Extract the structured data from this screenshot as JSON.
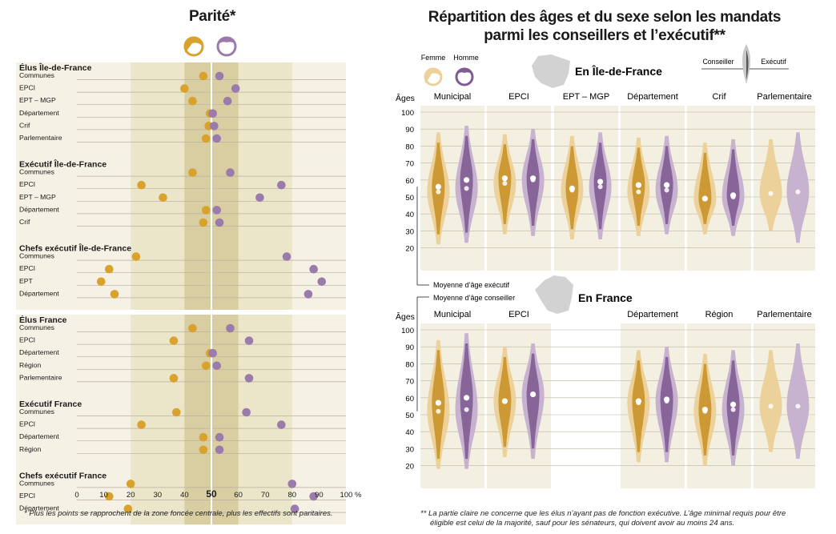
{
  "left": {
    "title": "Parité*",
    "footnote": "* Plus les points se rapprochent de la zone foncée centrale, plus les effectifs sont paritaires.",
    "axis_ticks": [
      "0",
      "10",
      "20",
      "30",
      "40",
      "50",
      "60",
      "70",
      "80",
      "90",
      "100 %"
    ],
    "colors": {
      "femme": "#d9a22c",
      "homme": "#9a7bac",
      "zone_light": "#ebe5c9",
      "zone_dark": "#d8cea2",
      "bg": "#f5f1e4"
    }
  },
  "right": {
    "title_line1": "Répartition des âges et du sexe selon les mandats",
    "title_line2": "parmi les conseillers et l’exécutif**",
    "footnote_line1": "** La partie claire ne concerne que les élus n’ayant pas de fonction exécutive. L’âge minimal requis pour être",
    "footnote_line2": "éligible est celui de la majorité, sauf pour les sénateurs, qui doivent avoir au moins 24 ans.",
    "legend": {
      "femme": "Femme",
      "homme": "Homme",
      "conseiller": "Conseiller",
      "executif": "Exécutif"
    },
    "region_idf": "En Île-de-France",
    "region_fr": "En France",
    "ages_label": "Âges",
    "age_ticks": [
      "100",
      "90",
      "80",
      "70",
      "60",
      "50",
      "40",
      "30",
      "20"
    ],
    "annot_exec": "Moyenne d’âge exécutif",
    "annot_cons": "Moyenne d’âge conseiller",
    "colors": {
      "femme_dark": "#c9922a",
      "femme_light": "#ecd29a",
      "homme_dark": "#7f5c92",
      "homme_light": "#c7b3d0",
      "panel_bg": "#f3efe1"
    }
  },
  "chart_data": [
    {
      "type": "scatter",
      "title": "Parité*",
      "xlim": [
        0,
        100
      ],
      "x_unit": "%",
      "highlight_zones": [
        [
          20,
          80
        ],
        [
          40,
          60
        ]
      ],
      "series_keys": [
        "femme",
        "homme"
      ],
      "groups": [
        {
          "label": "Élus Île-de-France",
          "rows": [
            {
              "label": "Communes",
              "femme": 47,
              "homme": 53
            },
            {
              "label": "EPCI",
              "femme": 40,
              "homme": 59
            },
            {
              "label": "EPT – MGP",
              "femme": 43,
              "homme": 56
            },
            {
              "label": "Département",
              "femme": 49.5,
              "homme": 50.5
            },
            {
              "label": "Crif",
              "femme": 49,
              "homme": 51
            },
            {
              "label": "Parlementaire",
              "femme": 48,
              "homme": 52
            }
          ]
        },
        {
          "label": "Exécutif Île-de-France",
          "rows": [
            {
              "label": "Communes",
              "femme": 43,
              "homme": 57
            },
            {
              "label": "EPCI",
              "femme": 24,
              "homme": 76
            },
            {
              "label": "EPT – MGP",
              "femme": 32,
              "homme": 68
            },
            {
              "label": "Département",
              "femme": 48,
              "homme": 52
            },
            {
              "label": "Crif",
              "femme": 47,
              "homme": 53
            }
          ]
        },
        {
          "label": "Chefs exécutif Île-de-France",
          "rows": [
            {
              "label": "Communes",
              "femme": 22,
              "homme": 78
            },
            {
              "label": "EPCI",
              "femme": 12,
              "homme": 88
            },
            {
              "label": "EPT",
              "femme": 9,
              "homme": 91
            },
            {
              "label": "Département",
              "femme": 14,
              "homme": 86
            }
          ]
        },
        {
          "label": "Élus France",
          "rows": [
            {
              "label": "Communes",
              "femme": 43,
              "homme": 57
            },
            {
              "label": "EPCI",
              "femme": 36,
              "homme": 64
            },
            {
              "label": "Département",
              "femme": 49.5,
              "homme": 50.5
            },
            {
              "label": "Région",
              "femme": 48,
              "homme": 52
            },
            {
              "label": "Parlementaire",
              "femme": 36,
              "homme": 64
            }
          ]
        },
        {
          "label": "Exécutif France",
          "rows": [
            {
              "label": "Communes",
              "femme": 37,
              "homme": 63
            },
            {
              "label": "EPCI",
              "femme": 24,
              "homme": 76
            },
            {
              "label": "Département",
              "femme": 47,
              "homme": 53
            },
            {
              "label": "Région",
              "femme": 47,
              "homme": 53
            }
          ]
        },
        {
          "label": "Chefs exécutif France",
          "rows": [
            {
              "label": "Communes",
              "femme": 20,
              "homme": 80
            },
            {
              "label": "EPCI",
              "femme": 12,
              "homme": 88
            },
            {
              "label": "Département",
              "femme": 19,
              "homme": 81
            }
          ]
        }
      ]
    },
    {
      "type": "violin",
      "title": "Répartition des âges et du sexe selon les mandats parmi les conseillers et l’exécutif**",
      "ylabel": "Âges",
      "ylim": [
        15,
        105
      ],
      "panels": [
        {
          "region": "En Île-de-France",
          "label": "Municipal",
          "femme": {
            "min": 22,
            "max": 88,
            "mean_cons": 53,
            "mean_exec": 56
          },
          "homme": {
            "min": 23,
            "max": 92,
            "mean_cons": 55,
            "mean_exec": 60
          }
        },
        {
          "region": "En Île-de-France",
          "label": "EPCI",
          "femme": {
            "min": 28,
            "max": 87,
            "mean_cons": 58,
            "mean_exec": 61
          },
          "homme": {
            "min": 27,
            "max": 90,
            "mean_cons": 60,
            "mean_exec": 61
          }
        },
        {
          "region": "En Île-de-France",
          "label": "EPT – MGP",
          "femme": {
            "min": 25,
            "max": 86,
            "mean_cons": 54,
            "mean_exec": 55
          },
          "homme": {
            "min": 25,
            "max": 88,
            "mean_cons": 56,
            "mean_exec": 59
          }
        },
        {
          "region": "En Île-de-France",
          "label": "Département",
          "femme": {
            "min": 27,
            "max": 85,
            "mean_cons": 53,
            "mean_exec": 57
          },
          "homme": {
            "min": 28,
            "max": 86,
            "mean_cons": 54,
            "mean_exec": 57
          }
        },
        {
          "region": "En Île-de-France",
          "label": "Crif",
          "femme": {
            "min": 28,
            "max": 82,
            "mean_cons": 49,
            "mean_exec": 49
          },
          "homme": {
            "min": 27,
            "max": 84,
            "mean_cons": 50,
            "mean_exec": 51
          }
        },
        {
          "region": "En Île-de-France",
          "label": "Parlementaire",
          "femme": {
            "min": 30,
            "max": 84,
            "mean_cons": 52
          },
          "homme": {
            "min": 23,
            "max": 88,
            "mean_cons": 53
          }
        },
        {
          "region": "En France",
          "label": "Municipal",
          "femme": {
            "min": 18,
            "max": 94,
            "mean_cons": 52,
            "mean_exec": 57
          },
          "homme": {
            "min": 18,
            "max": 98,
            "mean_cons": 53,
            "mean_exec": 60
          }
        },
        {
          "region": "En France",
          "label": "EPCI",
          "femme": {
            "min": 25,
            "max": 90,
            "mean_cons": 58,
            "mean_exec": 58
          },
          "homme": {
            "min": 24,
            "max": 92,
            "mean_cons": 62,
            "mean_exec": 62
          }
        },
        {
          "region": "En France",
          "label": "Département",
          "femme": {
            "min": 22,
            "max": 88,
            "mean_cons": 57,
            "mean_exec": 58
          },
          "homme": {
            "min": 22,
            "max": 90,
            "mean_cons": 58,
            "mean_exec": 59
          }
        },
        {
          "region": "En France",
          "label": "Région",
          "femme": {
            "min": 20,
            "max": 86,
            "mean_cons": 52,
            "mean_exec": 53
          },
          "homme": {
            "min": 20,
            "max": 88,
            "mean_cons": 53,
            "mean_exec": 56
          }
        },
        {
          "region": "En France",
          "label": "Parlementaire",
          "femme": {
            "min": 28,
            "max": 88,
            "mean_cons": 55
          },
          "homme": {
            "min": 24,
            "max": 92,
            "mean_cons": 55
          }
        }
      ]
    }
  ]
}
